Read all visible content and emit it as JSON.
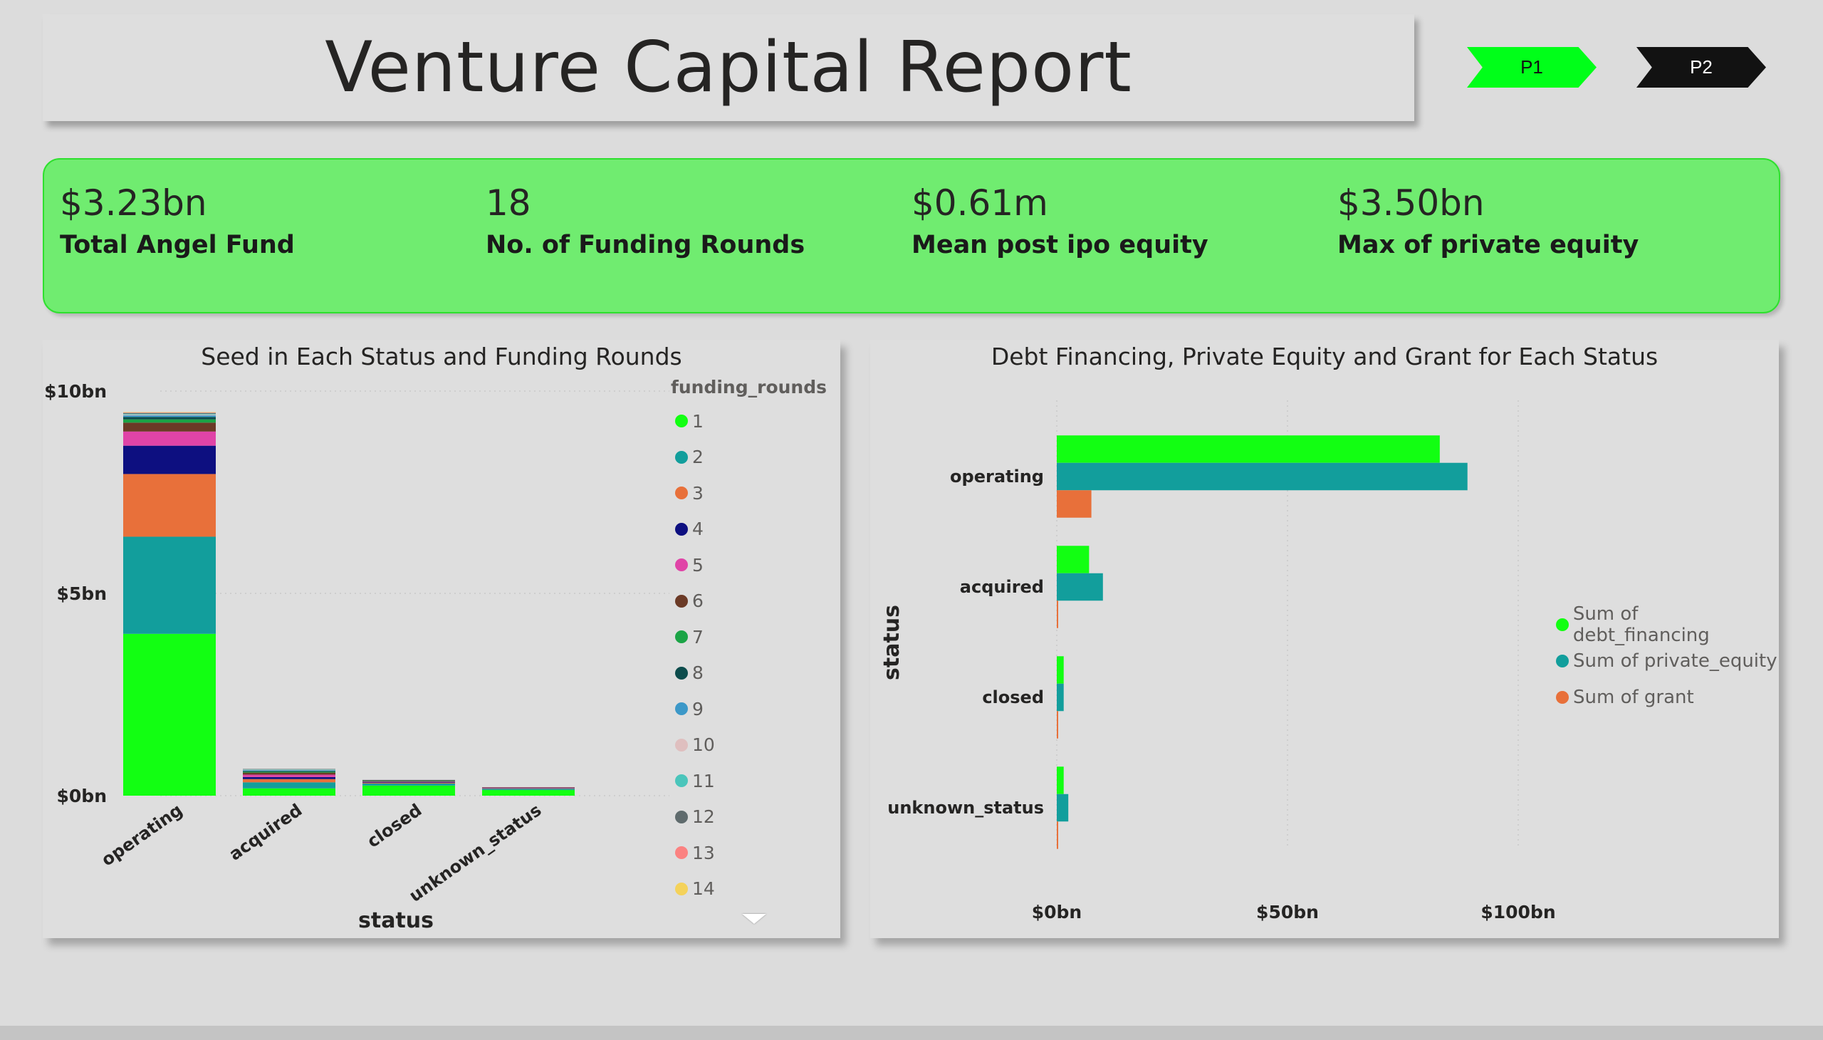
{
  "header": {
    "title": "Venture Capital Report"
  },
  "nav": {
    "p1": "P1",
    "p2": "P2"
  },
  "kpis": [
    {
      "value": "$3.23bn",
      "label": "Total Angel Fund"
    },
    {
      "value": "18",
      "label": "No. of Funding Rounds"
    },
    {
      "value": "$0.61m",
      "label": "Mean post ipo equity"
    },
    {
      "value": "$3.50bn",
      "label": "Max of private equity"
    }
  ],
  "chart_data": [
    {
      "type": "bar",
      "stacked": true,
      "title": "Seed in Each Status and Funding Rounds",
      "xlabel": "status",
      "ylabel": "",
      "ylim": [
        0,
        10
      ],
      "y_ticks": [
        "$10bn",
        "$5bn",
        "$0bn"
      ],
      "categories": [
        "operating",
        "acquired",
        "closed",
        "unknown_status"
      ],
      "legend_title": "funding_rounds",
      "legend_placement": "right",
      "series": [
        {
          "name": "1",
          "color": "#12ff12",
          "values": [
            4.0,
            0.18,
            0.25,
            0.14
          ]
        },
        {
          "name": "2",
          "color": "#129e9c",
          "values": [
            2.4,
            0.15,
            0.05,
            0.03
          ]
        },
        {
          "name": "3",
          "color": "#e8703a",
          "values": [
            1.55,
            0.08,
            0.02,
            0.01
          ]
        },
        {
          "name": "4",
          "color": "#0d0f80",
          "values": [
            0.7,
            0.05,
            0.02,
            0.01
          ]
        },
        {
          "name": "5",
          "color": "#e044a7",
          "values": [
            0.35,
            0.06,
            0.01,
            0.01
          ]
        },
        {
          "name": "6",
          "color": "#6b3a26",
          "values": [
            0.22,
            0.05,
            0.01,
            0.01
          ]
        },
        {
          "name": "7",
          "color": "#1ba446",
          "values": [
            0.08,
            0.02,
            0.01,
            0.0
          ]
        },
        {
          "name": "8",
          "color": "#0c4c4c",
          "values": [
            0.06,
            0.02,
            0.0,
            0.0
          ]
        },
        {
          "name": "9",
          "color": "#3c98c8",
          "values": [
            0.04,
            0.02,
            0.0,
            0.0
          ]
        },
        {
          "name": "10",
          "color": "#dfbfbf",
          "values": [
            0.02,
            0.01,
            0.0,
            0.0
          ]
        },
        {
          "name": "11",
          "color": "#4ac5bb",
          "values": [
            0.02,
            0.01,
            0.0,
            0.0
          ]
        },
        {
          "name": "12",
          "color": "#5f6b6d",
          "values": [
            0.02,
            0.01,
            0.02,
            0.0
          ]
        },
        {
          "name": "13",
          "color": "#fb8281",
          "values": [
            0.01,
            0.0,
            0.0,
            0.0
          ]
        },
        {
          "name": "14",
          "color": "#f4d25a",
          "values": [
            0.01,
            0.0,
            0.0,
            0.0
          ]
        }
      ],
      "grid": true
    },
    {
      "type": "bar",
      "orientation": "horizontal",
      "title": "Debt Financing, Private Equity and Grant for Each Status",
      "xlabel": "",
      "ylabel": "status",
      "xlim": [
        0,
        125
      ],
      "x_ticks": [
        "$0bn",
        "$50bn",
        "$100bn"
      ],
      "categories": [
        "operating",
        "acquired",
        "closed",
        "unknown_status"
      ],
      "legend_placement": "right",
      "series": [
        {
          "name": "Sum of debt_financing",
          "color": "#12ff12",
          "values": [
            83,
            7,
            1.5,
            1.5
          ]
        },
        {
          "name": "Sum of private_equity",
          "color": "#129e9c",
          "values": [
            89,
            10,
            1.5,
            2.5
          ]
        },
        {
          "name": "Sum of grant",
          "color": "#e8703a",
          "values": [
            7.5,
            0.3,
            0.2,
            0.2
          ]
        }
      ],
      "grid": true
    }
  ]
}
